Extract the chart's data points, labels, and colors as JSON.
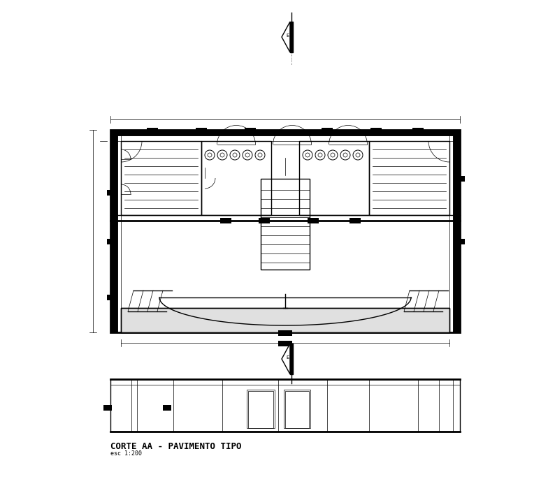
{
  "bg_color": "#ffffff",
  "line_color": "#000000",
  "title": "CORTE AA - PAVIMENTO TIPO",
  "subtitle": "esc 1:200",
  "fig_width": 7.94,
  "fig_height": 7.06,
  "dpi": 100
}
